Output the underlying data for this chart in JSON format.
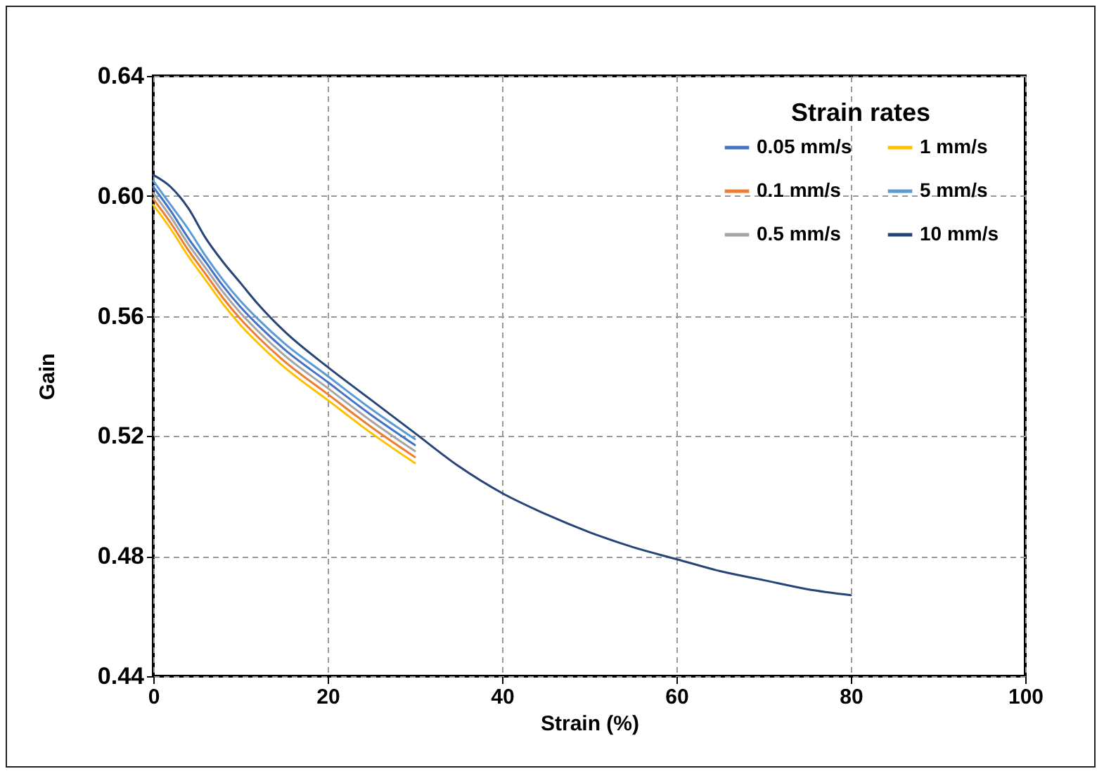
{
  "chart_data": {
    "type": "line",
    "xlabel": "Strain (%)",
    "ylabel": "Gain",
    "legend_title": "Strain rates",
    "xlim": [
      0,
      100
    ],
    "xticks": [
      0,
      20,
      40,
      60,
      80,
      100
    ],
    "ylim": [
      0.44,
      0.64
    ],
    "yticks": [
      {
        "value": 0.44,
        "label": "0.44"
      },
      {
        "value": 0.48,
        "label": "0.48"
      },
      {
        "value": 0.52,
        "label": "0.52"
      },
      {
        "value": 0.56,
        "label": "0.56"
      },
      {
        "value": 0.6,
        "label": "0.60"
      },
      {
        "value": 0.64,
        "label": "0.64"
      }
    ],
    "grid": true,
    "legend": "top right",
    "marker": "none",
    "line_style": "solid",
    "x": [
      0,
      2,
      4,
      6,
      8,
      10,
      12,
      15,
      20,
      25,
      30,
      35,
      40,
      45,
      50,
      55,
      60,
      65,
      70,
      75,
      80
    ],
    "series": [
      {
        "name": "0.05 mm/s",
        "color": "#4472c4",
        "values": [
          0.603,
          0.595,
          0.586,
          0.578,
          0.57,
          0.563,
          0.557,
          0.549,
          0.538,
          0.527,
          0.517,
          null,
          null,
          null,
          null,
          null,
          null,
          null,
          null,
          null,
          null
        ]
      },
      {
        "name": "0.1 mm/s",
        "color": "#ed7d31",
        "values": [
          0.599,
          0.591,
          0.582,
          0.574,
          0.566,
          0.559,
          0.553,
          0.545,
          0.534,
          0.523,
          0.513,
          null,
          null,
          null,
          null,
          null,
          null,
          null,
          null,
          null,
          null
        ]
      },
      {
        "name": "0.5 mm/s",
        "color": "#a5a5a5",
        "values": [
          0.601,
          0.593,
          0.584,
          0.576,
          0.568,
          0.561,
          0.555,
          0.547,
          0.536,
          0.525,
          0.515,
          null,
          null,
          null,
          null,
          null,
          null,
          null,
          null,
          null,
          null
        ]
      },
      {
        "name": "1 mm/s",
        "color": "#ffc000",
        "values": [
          0.597,
          0.589,
          0.58,
          0.572,
          0.564,
          0.557,
          0.551,
          0.543,
          0.532,
          0.521,
          0.511,
          null,
          null,
          null,
          null,
          null,
          null,
          null,
          null,
          null,
          null
        ]
      },
      {
        "name": "5 mm/s",
        "color": "#5b9bd5",
        "values": [
          0.605,
          0.597,
          0.589,
          0.58,
          0.572,
          0.565,
          0.559,
          0.551,
          0.54,
          0.529,
          0.519,
          null,
          null,
          null,
          null,
          null,
          null,
          null,
          null,
          null,
          null
        ]
      },
      {
        "name": "10 mm/s",
        "color": "#264478",
        "values": [
          0.607,
          0.603,
          0.596,
          0.586,
          0.578,
          0.571,
          0.564,
          0.555,
          0.543,
          0.532,
          0.521,
          0.51,
          0.501,
          0.494,
          0.488,
          0.483,
          0.479,
          0.475,
          0.472,
          0.469,
          0.467
        ]
      }
    ]
  }
}
